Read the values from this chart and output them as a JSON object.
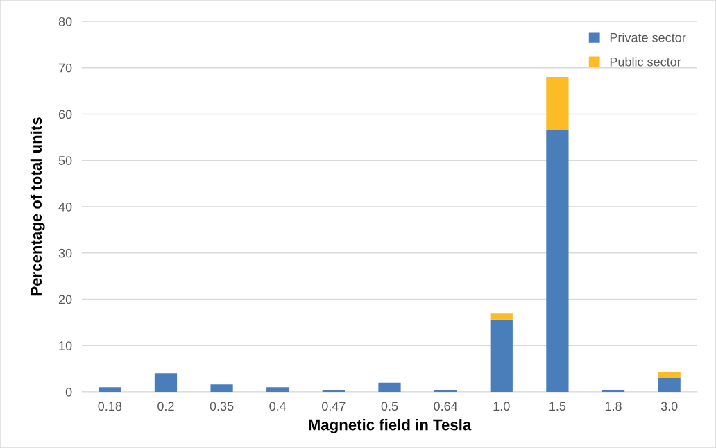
{
  "chart_data": {
    "type": "bar",
    "stacked": true,
    "xlabel": "Magnetic field in Tesla",
    "ylabel": "Percentage of total units",
    "categories": [
      "0.18",
      "0.2",
      "0.35",
      "0.4",
      "0.47",
      "0.5",
      "0.64",
      "1.0",
      "1.5",
      "1.8",
      "3.0"
    ],
    "series": [
      {
        "name": "Private sector",
        "color": "#4a7ebb",
        "values": [
          1.0,
          4.0,
          1.6,
          1.0,
          0.3,
          2.0,
          0.3,
          15.6,
          56.6,
          0.3,
          3.0
        ]
      },
      {
        "name": "Public sector",
        "color": "#fdbb26",
        "values": [
          0,
          0,
          0,
          0,
          0,
          0,
          0,
          1.3,
          11.4,
          0,
          1.3
        ]
      }
    ],
    "ylim": [
      0,
      80
    ],
    "yticks": [
      0,
      10,
      20,
      30,
      40,
      50,
      60,
      70,
      80
    ],
    "grid": "y",
    "legend": "top right"
  }
}
